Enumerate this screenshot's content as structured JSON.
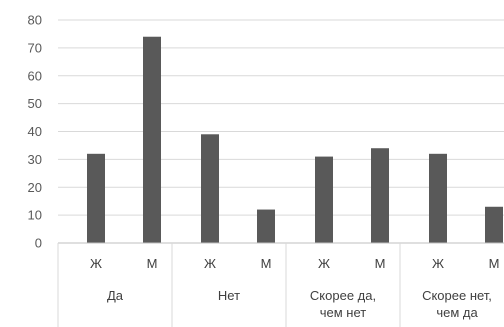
{
  "chart_data": {
    "type": "bar",
    "ylim": [
      0,
      80
    ],
    "yticks": [
      0,
      10,
      20,
      30,
      40,
      50,
      60,
      70,
      80
    ],
    "grid": true,
    "bar_color": "#595959",
    "grid_color": "#d9d9d9",
    "groups": [
      {
        "label_lines": [
          "Да"
        ],
        "categories": [
          "Ж",
          "М"
        ],
        "values": [
          32,
          74
        ]
      },
      {
        "label_lines": [
          "Нет"
        ],
        "categories": [
          "Ж",
          "М"
        ],
        "values": [
          39,
          12
        ]
      },
      {
        "label_lines": [
          "Скорее да,",
          "чем нет"
        ],
        "categories": [
          "Ж",
          "М"
        ],
        "values": [
          31,
          34
        ]
      },
      {
        "label_lines": [
          "Скорее нет,",
          "чем да"
        ],
        "categories": [
          "Ж",
          "М"
        ],
        "values": [
          32,
          13
        ]
      }
    ]
  }
}
